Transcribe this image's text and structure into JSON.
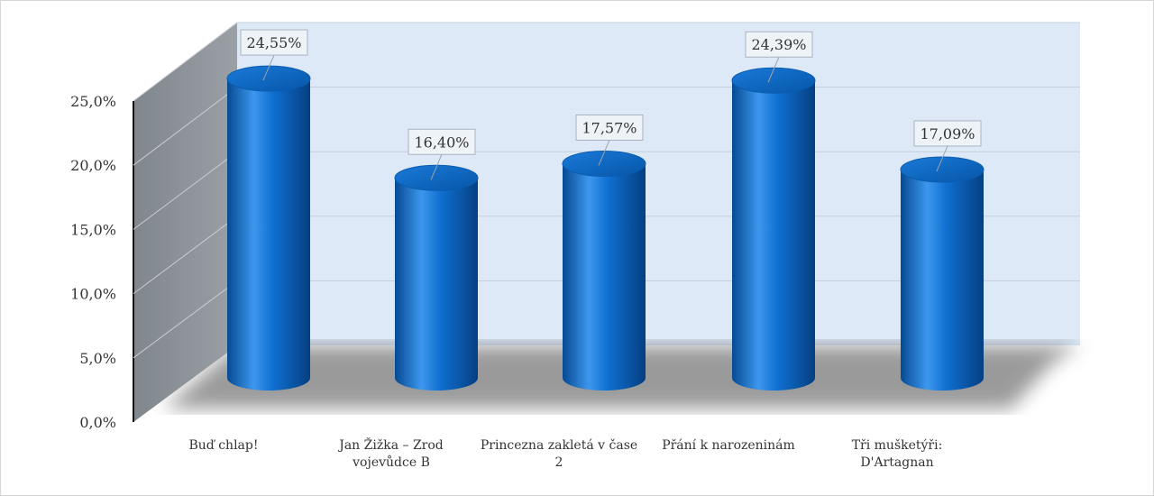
{
  "chart_data": {
    "type": "bar",
    "style": "3d-cylinder",
    "categories": [
      [
        "Buď chlap!"
      ],
      [
        "Jan Žižka – Zrod",
        "vojevůdce B"
      ],
      [
        "Princezna zakletá v čase",
        "2"
      ],
      [
        "Přání k narozeninám"
      ],
      [
        "Tři mušketýři:",
        "D'Artagnan"
      ]
    ],
    "series": [
      {
        "values": [
          24.55,
          16.4,
          17.57,
          24.39,
          17.09
        ]
      }
    ],
    "data_labels": [
      "24,55%",
      "16,40%",
      "17,57%",
      "24,39%",
      "17,09%"
    ],
    "yticks": [
      "0,0%",
      "5,0%",
      "10,0%",
      "15,0%",
      "20,0%",
      "25,0%"
    ],
    "ylim": [
      0,
      25
    ],
    "grid": true,
    "colors": {
      "bar": "#0a68c8",
      "bar_dark": "#064a93",
      "bar_light": "#3d97ee",
      "back_wall": "#dde9f7",
      "side_wall": "#8f959b",
      "label_box": "#eef3f8",
      "label_border": "#a8b3bf"
    }
  }
}
